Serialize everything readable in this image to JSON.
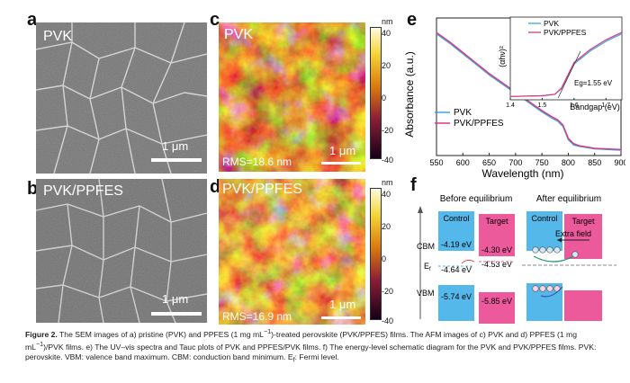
{
  "panels": {
    "a": {
      "letter": "a",
      "title": "PVK",
      "scale": "1 μm"
    },
    "b": {
      "letter": "b",
      "title": "PVK/PPFES",
      "scale": "1 μm"
    },
    "c": {
      "letter": "c",
      "title": "PVK",
      "scale": "1 μm",
      "rms": "RMS=18.6 nm"
    },
    "d": {
      "letter": "d",
      "title": "PVK/PPFES",
      "scale": "1 μm",
      "rms": "RMS=16.9 nm"
    },
    "e": {
      "letter": "e"
    },
    "f": {
      "letter": "f"
    }
  },
  "colorbar": {
    "unit": "nm",
    "ticks": [
      "40",
      "20",
      "0",
      "-20",
      "-40"
    ]
  },
  "chart_data": [
    {
      "type": "line",
      "xlabel": "Wavelength (nm)",
      "ylabel": "Absorbance (a.u.)",
      "xlim": [
        550,
        900
      ],
      "xticks": [
        "550",
        "600",
        "650",
        "700",
        "750",
        "800",
        "850",
        "900"
      ],
      "legend": "bottom-left",
      "series": [
        {
          "name": "PVK",
          "color": "#3aa6e0",
          "x": [
            550,
            575,
            600,
            625,
            650,
            675,
            700,
            725,
            750,
            770,
            780,
            790,
            800,
            810,
            820,
            850,
            900
          ],
          "y": [
            0.9,
            0.83,
            0.75,
            0.67,
            0.59,
            0.52,
            0.45,
            0.38,
            0.31,
            0.26,
            0.24,
            0.2,
            0.1,
            0.06,
            0.05,
            0.03,
            0.02
          ]
        },
        {
          "name": "PVK/PPFES",
          "color": "#e0357e",
          "x": [
            550,
            575,
            600,
            625,
            650,
            675,
            700,
            725,
            750,
            770,
            780,
            790,
            800,
            810,
            820,
            850,
            900
          ],
          "y": [
            0.91,
            0.84,
            0.76,
            0.68,
            0.6,
            0.53,
            0.46,
            0.39,
            0.32,
            0.27,
            0.25,
            0.21,
            0.11,
            0.07,
            0.055,
            0.035,
            0.025
          ]
        }
      ]
    },
    {
      "type": "line",
      "xlabel": "Bandgap (eV)",
      "ylabel": "(αhν)²",
      "xlim": [
        1.4,
        1.75
      ],
      "xticks": [
        "1.4",
        "1.5",
        "1.6",
        "1.7"
      ],
      "annotation": "Eg=1.55 eV",
      "legend": "top-right",
      "series": [
        {
          "name": "PVK",
          "color": "#3aa6e0",
          "x": [
            1.4,
            1.5,
            1.54,
            1.56,
            1.58,
            1.6,
            1.65,
            1.7,
            1.75
          ],
          "y": [
            0.02,
            0.03,
            0.05,
            0.12,
            0.28,
            0.45,
            0.62,
            0.75,
            0.85
          ]
        },
        {
          "name": "PVK/PPFES",
          "color": "#e0357e",
          "x": [
            1.4,
            1.5,
            1.54,
            1.56,
            1.58,
            1.6,
            1.65,
            1.7,
            1.75
          ],
          "y": [
            0.02,
            0.03,
            0.05,
            0.13,
            0.3,
            0.47,
            0.64,
            0.77,
            0.87
          ]
        }
      ]
    }
  ],
  "diagram": {
    "before_title": "Before equilibrium",
    "after_title": "After equilibrium",
    "control": "Control",
    "target": "Target",
    "extra_field": "Extra field",
    "cbm": "CBM",
    "vbm": "VBM",
    "ef": "E",
    "ef_sub": "f",
    "cbm_control": "-4.19 eV",
    "cbm_target": "-4.30 eV",
    "ef_control": "-4.64 eV",
    "ef_target": "-4.53 eV",
    "vbm_control": "-5.74 eV",
    "vbm_target": "-5.85 eV",
    "electron": "e",
    "hole": "+",
    "colors": {
      "control": "#54b8ea",
      "target": "#ec5a9b"
    }
  },
  "caption": {
    "label": "Figure 2.",
    "text1": " The SEM images of a) pristine (PVK) and PPFES (1 mg mL",
    "sup1": "−1",
    "text2": ")-treated perovskite (PVK/PPFES) films. The AFM images of c) PVK and d) PPFES (1 mg mL",
    "sup2": "−1",
    "text3": ")/PVK films. e) The UV–vis spectra and Tauc plots of PVK and PPFES/PVK films. f) The energy-level schematic diagram for the PVK and PVK/PPFES films. PVK: perovskite. VBM: valence band maximum. CBM: conduction band minimum. E",
    "sub": "f",
    "text4": ": Fermi level."
  }
}
